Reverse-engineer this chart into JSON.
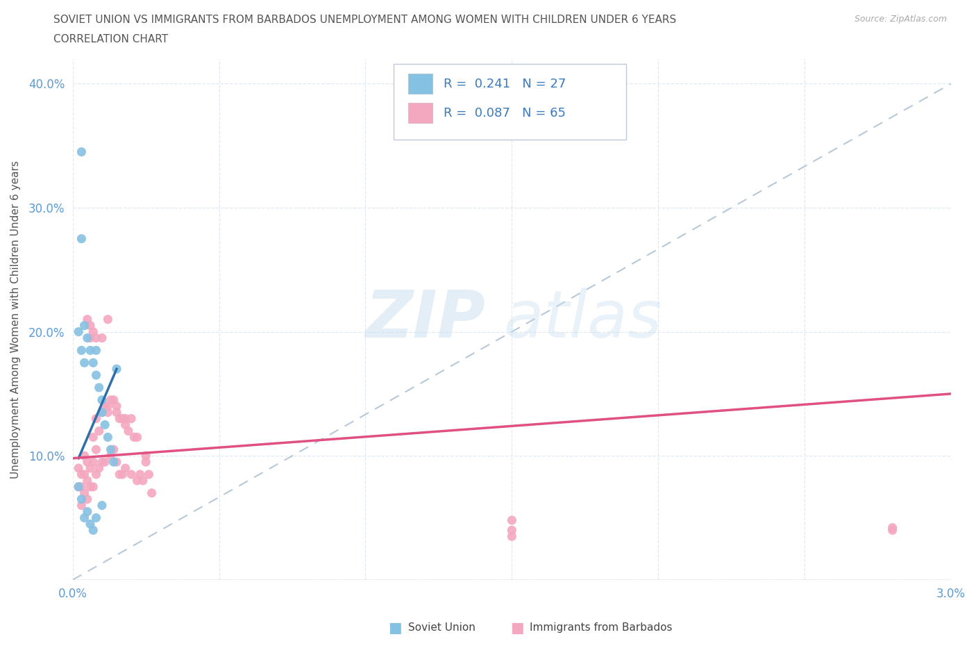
{
  "title_line1": "SOVIET UNION VS IMMIGRANTS FROM BARBADOS UNEMPLOYMENT AMONG WOMEN WITH CHILDREN UNDER 6 YEARS",
  "title_line2": "CORRELATION CHART",
  "source_text": "Source: ZipAtlas.com",
  "ylabel_label": "Unemployment Among Women with Children Under 6 years",
  "xlim": [
    0.0,
    0.03
  ],
  "ylim": [
    0.0,
    0.42
  ],
  "color_soviet": "#85c1e2",
  "color_barbados": "#f4a8bf",
  "color_soviet_line": "#2e6faa",
  "color_barbados_line": "#e05080",
  "color_diag": "#b8c8d8",
  "background_color": "#ffffff",
  "grid_color": "#e0e8f0",
  "tick_color": "#5b9bd5",
  "title_color": "#555555",
  "legend_r1": "R =  0.241",
  "legend_n1": "N = 27",
  "legend_r2": "R =  0.087",
  "legend_n2": "N = 65",
  "soviet_x": [
    0.0003,
    0.0003,
    0.0004,
    0.0005,
    0.0006,
    0.0007,
    0.0008,
    0.0008,
    0.0009,
    0.001,
    0.001,
    0.0011,
    0.0012,
    0.0013,
    0.0014,
    0.0015,
    0.0002,
    0.0003,
    0.0004,
    0.0005,
    0.0006,
    0.0007,
    0.0008,
    0.001,
    0.0002,
    0.0003,
    0.0004
  ],
  "soviet_y": [
    0.345,
    0.275,
    0.205,
    0.195,
    0.185,
    0.175,
    0.185,
    0.165,
    0.155,
    0.145,
    0.135,
    0.125,
    0.115,
    0.105,
    0.095,
    0.17,
    0.2,
    0.185,
    0.175,
    0.055,
    0.045,
    0.04,
    0.05,
    0.06,
    0.075,
    0.065,
    0.05
  ],
  "barbados_x": [
    0.0002,
    0.0002,
    0.0003,
    0.0003,
    0.0003,
    0.0004,
    0.0004,
    0.0004,
    0.0005,
    0.0005,
    0.0005,
    0.0005,
    0.0006,
    0.0006,
    0.0006,
    0.0006,
    0.0007,
    0.0007,
    0.0007,
    0.0007,
    0.0008,
    0.0008,
    0.0008,
    0.0008,
    0.0009,
    0.0009,
    0.001,
    0.001,
    0.001,
    0.0011,
    0.0011,
    0.0012,
    0.0012,
    0.0013,
    0.0013,
    0.0014,
    0.0014,
    0.0015,
    0.0015,
    0.0016,
    0.0016,
    0.0017,
    0.0017,
    0.0018,
    0.0018,
    0.0019,
    0.002,
    0.002,
    0.0021,
    0.0022,
    0.0022,
    0.0023,
    0.0024,
    0.0025,
    0.0026,
    0.0027,
    0.0012,
    0.0015,
    0.0018,
    0.0025,
    0.015,
    0.015,
    0.028,
    0.015,
    0.028
  ],
  "barbados_y": [
    0.09,
    0.075,
    0.085,
    0.075,
    0.06,
    0.1,
    0.085,
    0.07,
    0.21,
    0.095,
    0.08,
    0.065,
    0.205,
    0.195,
    0.09,
    0.075,
    0.2,
    0.115,
    0.095,
    0.075,
    0.195,
    0.13,
    0.105,
    0.085,
    0.12,
    0.09,
    0.195,
    0.135,
    0.095,
    0.14,
    0.095,
    0.21,
    0.14,
    0.145,
    0.1,
    0.145,
    0.105,
    0.14,
    0.095,
    0.13,
    0.085,
    0.13,
    0.085,
    0.125,
    0.09,
    0.12,
    0.13,
    0.085,
    0.115,
    0.115,
    0.08,
    0.085,
    0.08,
    0.1,
    0.085,
    0.07,
    0.135,
    0.135,
    0.13,
    0.095,
    0.048,
    0.04,
    0.042,
    0.035,
    0.04
  ]
}
